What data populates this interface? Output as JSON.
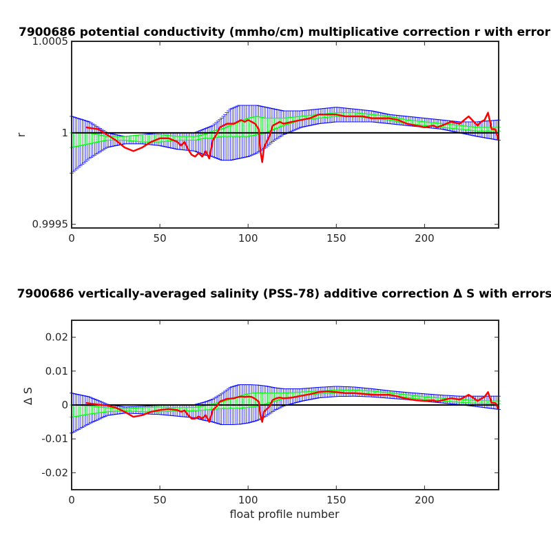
{
  "chart_data": [
    {
      "type": "line",
      "title": "7900686 potential conductivity (mmho/cm) multiplicative correction r with error",
      "xlabel": "",
      "ylabel": "r",
      "xlim": [
        0,
        242
      ],
      "ylim": [
        0.99948,
        1.0005
      ],
      "xticks": [
        "0",
        "50",
        "100",
        "150",
        "200"
      ],
      "xtick_values": [
        0,
        50,
        100,
        150,
        200
      ],
      "yticks": [
        "0.9995",
        "1",
        "1.0005"
      ],
      "ytick_values": [
        0.9995,
        1.0,
        1.0005
      ],
      "reference_line": 1.0,
      "grid": false,
      "colors": {
        "red": "#ff0000",
        "green": "#00ff00",
        "blue": "#0000ff",
        "reference": "#000000"
      },
      "x": [
        0,
        10,
        20,
        30,
        40,
        50,
        60,
        70,
        75,
        80,
        85,
        90,
        95,
        100,
        105,
        110,
        115,
        120,
        130,
        140,
        150,
        160,
        170,
        180,
        190,
        200,
        210,
        220,
        230,
        242
      ],
      "series": [
        {
          "name": "",
          "role": "fit",
          "color": "#00ff00",
          "values": [
            0.99996,
            0.99997,
            0.99997,
            0.99997,
            0.99997,
            0.99997,
            0.99997,
            0.99997,
            0.99998,
            0.99999,
            1.0,
            1.00001,
            1.00002,
            1.00003,
            1.00004,
            1.00004,
            1.00005,
            1.00006,
            1.00008,
            1.00009,
            1.0001,
            1.0001,
            1.00009,
            1.00008,
            1.00006,
            1.00005,
            1.00004,
            1.00003,
            1.00002,
            1.00002
          ]
        },
        {
          "name": "",
          "role": "fit-error",
          "color": "#00ff00",
          "values": [
            4e-05,
            3e-05,
            1e-05,
            1e-05,
            2e-05,
            2e-05,
            1e-05,
            1e-05,
            1e-05,
            2e-05,
            2e-05,
            3e-05,
            4e-05,
            5e-05,
            5e-05,
            4e-05,
            3e-05,
            2e-05,
            1e-05,
            1e-05,
            1e-05,
            1e-05,
            1e-05,
            1e-05,
            1e-05,
            1e-05,
            1e-05,
            1e-05,
            1e-05,
            1e-05
          ]
        },
        {
          "name": "",
          "role": "envelope-upper",
          "color": "#0000ff",
          "values": [
            1.00009,
            1.00006,
            1.0,
            0.99998,
            0.99999,
            1.0,
            1.0,
            1.0,
            1.00002,
            1.00004,
            1.00008,
            1.00013,
            1.00015,
            1.00015,
            1.00015,
            1.00014,
            1.00013,
            1.00012,
            1.00012,
            1.00013,
            1.00014,
            1.00013,
            1.00012,
            1.0001,
            1.00009,
            1.00008,
            1.00007,
            1.00006,
            1.00006,
            1.00007
          ]
        },
        {
          "name": "",
          "role": "envelope-lower",
          "color": "#0000ff",
          "values": [
            0.99978,
            0.99986,
            0.99992,
            0.99994,
            0.99994,
            0.99993,
            0.99991,
            0.9999,
            0.99988,
            0.99987,
            0.99985,
            0.99985,
            0.99986,
            0.99987,
            0.99989,
            0.99992,
            0.99996,
            0.99999,
            1.00003,
            1.00005,
            1.00006,
            1.00006,
            1.00006,
            1.00005,
            1.00004,
            1.00003,
            1.00002,
            1.0,
            0.99998,
            0.99996
          ]
        },
        {
          "name": "",
          "role": "profile-correction",
          "color": "#ff0000",
          "x": [
            8,
            15,
            20,
            25,
            30,
            35,
            40,
            45,
            50,
            55,
            60,
            62,
            64,
            66,
            68,
            70,
            72,
            74,
            76,
            78,
            80,
            82,
            84,
            86,
            88,
            90,
            92,
            94,
            96,
            98,
            100,
            102,
            104,
            106,
            107,
            108,
            109,
            110,
            112,
            114,
            116,
            118,
            120,
            125,
            130,
            135,
            140,
            145,
            150,
            155,
            160,
            165,
            170,
            175,
            180,
            185,
            190,
            195,
            200,
            205,
            207,
            210,
            215,
            220,
            225,
            228,
            230,
            232,
            234,
            236,
            238,
            240,
            242
          ],
          "values": [
            1.00003,
            1.00002,
            0.99999,
            0.99996,
            0.99992,
            0.9999,
            0.99992,
            0.99995,
            0.99997,
            0.99997,
            0.99995,
            0.99993,
            0.99995,
            0.99991,
            0.99988,
            0.99987,
            0.99989,
            0.99987,
            0.9999,
            0.99986,
            0.99996,
            0.99999,
            1.00003,
            1.00004,
            1.00005,
            1.00005,
            1.00005,
            1.00006,
            1.00007,
            1.00006,
            1.00007,
            1.00006,
            1.00005,
            1.00002,
            0.9999,
            0.99984,
            0.99992,
            0.99994,
            0.99998,
            1.00004,
            1.00005,
            1.00006,
            1.00005,
            1.00006,
            1.00007,
            1.00008,
            1.0001,
            1.0001,
            1.0001,
            1.00009,
            1.00009,
            1.00009,
            1.00008,
            1.00008,
            1.00008,
            1.00007,
            1.00005,
            1.00004,
            1.00003,
            1.00004,
            1.00003,
            1.00004,
            1.00006,
            1.00005,
            1.00009,
            1.00006,
            1.00004,
            1.00006,
            1.00007,
            1.00011,
            1.00002,
            1.00002,
            0.99996
          ]
        }
      ]
    },
    {
      "type": "line",
      "title": "7900686 vertically-averaged salinity (PSS-78) additive correction Δ S with errors",
      "xlabel": "float profile number",
      "ylabel": "Δ S",
      "xlim": [
        0,
        242
      ],
      "ylim": [
        -0.025,
        0.025
      ],
      "xticks": [
        "0",
        "50",
        "100",
        "150",
        "200"
      ],
      "xtick_values": [
        0,
        50,
        100,
        150,
        200
      ],
      "yticks": [
        "-0.02",
        "-0.01",
        "0",
        "0.01",
        "0.02"
      ],
      "ytick_values": [
        -0.02,
        -0.01,
        0,
        0.01,
        0.02
      ],
      "reference_line": 0,
      "grid": false,
      "colors": {
        "red": "#ff0000",
        "green": "#00ff00",
        "blue": "#0000ff",
        "reference": "#000000"
      },
      "x": [
        0,
        10,
        20,
        30,
        40,
        50,
        60,
        70,
        75,
        80,
        85,
        90,
        95,
        100,
        105,
        110,
        115,
        120,
        130,
        140,
        150,
        160,
        170,
        180,
        190,
        200,
        210,
        220,
        230,
        242
      ],
      "series": [
        {
          "name": "",
          "role": "fit",
          "color": "#00ff00",
          "values": [
            -0.0018,
            -0.0015,
            -0.0014,
            -0.0014,
            -0.0014,
            -0.0013,
            -0.0013,
            -0.0012,
            -0.0009,
            -0.0005,
            -0.0001,
            0.0004,
            0.0008,
            0.0013,
            0.0016,
            0.0019,
            0.0023,
            0.0027,
            0.0033,
            0.0037,
            0.004,
            0.004,
            0.0037,
            0.0032,
            0.0026,
            0.002,
            0.0016,
            0.0012,
            0.0009,
            0.0008
          ]
        },
        {
          "name": "",
          "role": "fit-error",
          "color": "#00ff00",
          "values": [
            0.0018,
            0.0012,
            0.0006,
            0.0003,
            0.0006,
            0.0007,
            0.0005,
            0.0005,
            0.0006,
            0.0008,
            0.001,
            0.0014,
            0.0018,
            0.002,
            0.002,
            0.0016,
            0.0012,
            0.0008,
            0.0005,
            0.0004,
            0.0004,
            0.0004,
            0.0004,
            0.0004,
            0.0004,
            0.0004,
            0.0004,
            0.0004,
            0.0004,
            0.0004
          ]
        },
        {
          "name": "",
          "role": "envelope-upper",
          "color": "#0000ff",
          "values": [
            0.0035,
            0.0024,
            0.0002,
            -0.0006,
            -0.0004,
            -0.0001,
            -0.0001,
            0.0001,
            0.0008,
            0.0017,
            0.0033,
            0.0052,
            0.006,
            0.006,
            0.0059,
            0.0056,
            0.0051,
            0.0048,
            0.0048,
            0.0052,
            0.0055,
            0.0053,
            0.0048,
            0.0042,
            0.0037,
            0.0033,
            0.0029,
            0.0026,
            0.0026,
            0.0026
          ]
        },
        {
          "name": "",
          "role": "envelope-lower",
          "color": "#0000ff",
          "values": [
            -0.0083,
            -0.0055,
            -0.0031,
            -0.0024,
            -0.0026,
            -0.0028,
            -0.0033,
            -0.0038,
            -0.0045,
            -0.005,
            -0.0058,
            -0.0058,
            -0.0057,
            -0.0053,
            -0.0046,
            -0.0033,
            -0.0016,
            -0.0003,
            0.0011,
            0.0021,
            0.0025,
            0.0026,
            0.0024,
            0.002,
            0.0016,
            0.0011,
            0.0006,
            0.0001,
            -0.0005,
            -0.0013
          ]
        },
        {
          "name": "",
          "role": "profile-correction",
          "color": "#ff0000",
          "x": [
            8,
            15,
            20,
            25,
            30,
            35,
            40,
            45,
            50,
            55,
            60,
            62,
            64,
            66,
            68,
            70,
            72,
            74,
            76,
            78,
            80,
            82,
            84,
            86,
            88,
            90,
            92,
            94,
            96,
            98,
            100,
            102,
            104,
            106,
            107,
            108,
            109,
            110,
            112,
            114,
            116,
            118,
            120,
            125,
            130,
            135,
            140,
            145,
            150,
            155,
            160,
            165,
            170,
            175,
            180,
            185,
            190,
            195,
            200,
            205,
            207,
            210,
            215,
            220,
            225,
            228,
            230,
            232,
            234,
            236,
            238,
            240,
            242
          ],
          "values": [
            0.0006,
            0.0001,
            -0.0001,
            -0.0008,
            -0.002,
            -0.0035,
            -0.003,
            -0.002,
            -0.0015,
            -0.0012,
            -0.0015,
            -0.002,
            -0.0016,
            -0.003,
            -0.004,
            -0.004,
            -0.0034,
            -0.004,
            -0.003,
            -0.005,
            -0.0015,
            -0.0005,
            0.001,
            0.0014,
            0.0018,
            0.0019,
            0.002,
            0.0023,
            0.0025,
            0.0024,
            0.0025,
            0.0024,
            0.0018,
            0.001,
            -0.003,
            -0.005,
            -0.002,
            -0.0015,
            -0.0005,
            0.0015,
            0.002,
            0.0022,
            0.002,
            0.0022,
            0.0027,
            0.0032,
            0.0038,
            0.004,
            0.0038,
            0.0035,
            0.0035,
            0.0033,
            0.003,
            0.003,
            0.003,
            0.0025,
            0.0018,
            0.0014,
            0.0012,
            0.0014,
            0.001,
            0.0014,
            0.002,
            0.0016,
            0.003,
            0.002,
            0.0012,
            0.0018,
            0.0024,
            0.0038,
            0.0006,
            0.0006,
            -0.0012
          ]
        }
      ]
    }
  ]
}
